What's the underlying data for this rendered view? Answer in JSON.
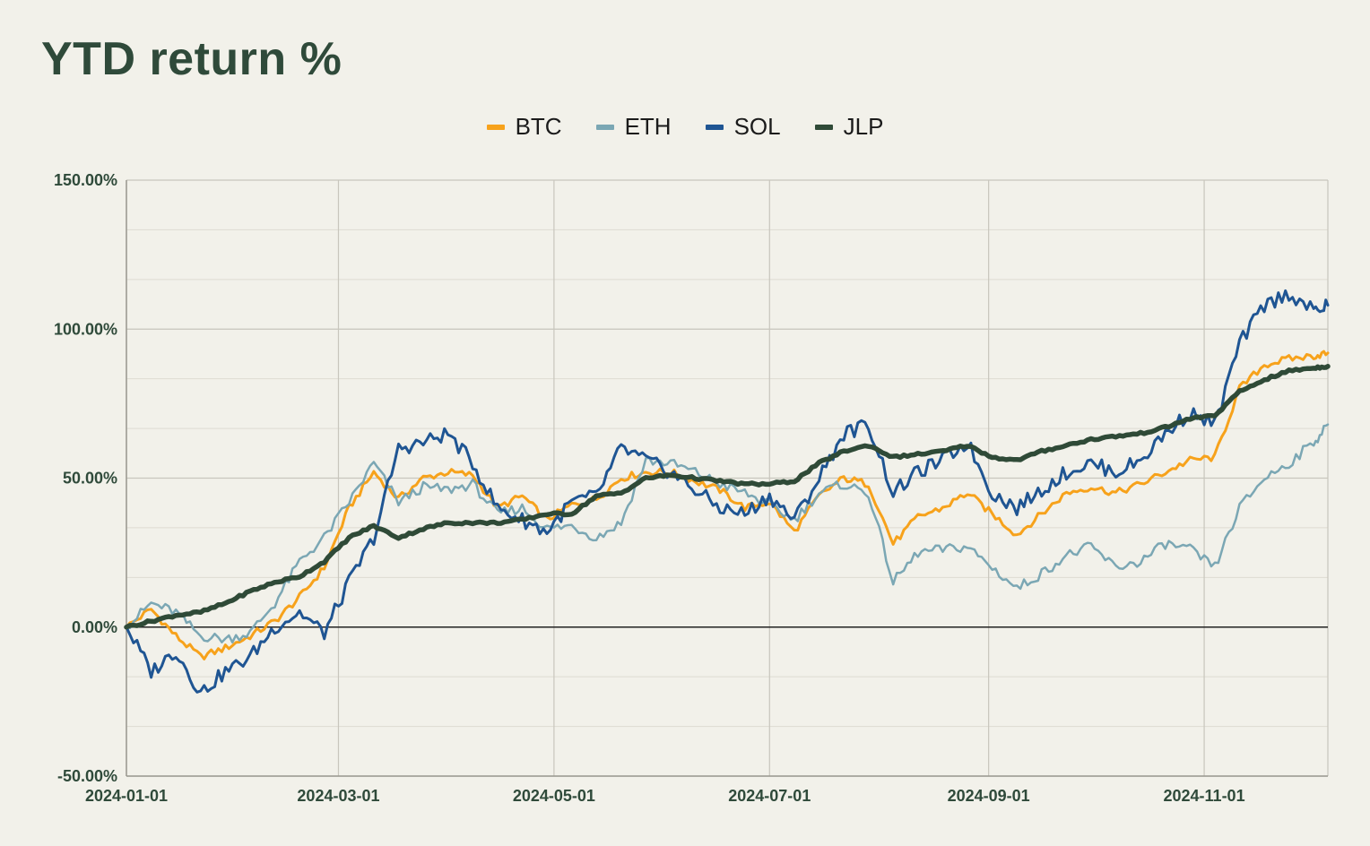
{
  "title": "YTD return %",
  "chart_data": {
    "type": "line",
    "title": "YTD return %",
    "xlabel": "",
    "ylabel": "",
    "x_range": [
      "2024-01-01",
      "2024-12-06"
    ],
    "ylim": [
      -50,
      150
    ],
    "y_ticks": [
      "150.00%",
      "100.00%",
      "50.00%",
      "0.00%",
      "-50.00%"
    ],
    "y_tick_values": [
      150,
      100,
      50,
      0,
      -50
    ],
    "x_ticks": [
      "2024-01-01",
      "2024-03-01",
      "2024-05-01",
      "2024-07-01",
      "2024-09-01",
      "2024-11-01"
    ],
    "grid": true,
    "legend_position": "top-center",
    "series": [
      {
        "name": "BTC",
        "color": "#f7a21b",
        "width": 3,
        "points": [
          [
            "2024-01-01",
            0
          ],
          [
            "2024-01-08",
            6
          ],
          [
            "2024-01-15",
            -3
          ],
          [
            "2024-01-22",
            -10
          ],
          [
            "2024-01-29",
            -7
          ],
          [
            "2024-02-05",
            -3
          ],
          [
            "2024-02-12",
            2
          ],
          [
            "2024-02-19",
            10
          ],
          [
            "2024-02-26",
            20
          ],
          [
            "2024-03-04",
            40
          ],
          [
            "2024-03-11",
            52
          ],
          [
            "2024-03-18",
            43
          ],
          [
            "2024-03-25",
            50
          ],
          [
            "2024-04-01",
            52
          ],
          [
            "2024-04-08",
            51
          ],
          [
            "2024-04-15",
            40
          ],
          [
            "2024-04-22",
            44
          ],
          [
            "2024-04-29",
            36
          ],
          [
            "2024-05-06",
            41
          ],
          [
            "2024-05-13",
            43
          ],
          [
            "2024-05-20",
            50
          ],
          [
            "2024-05-27",
            52
          ],
          [
            "2024-06-03",
            52
          ],
          [
            "2024-06-10",
            49
          ],
          [
            "2024-06-17",
            46
          ],
          [
            "2024-06-24",
            40
          ],
          [
            "2024-07-01",
            42
          ],
          [
            "2024-07-08",
            32
          ],
          [
            "2024-07-15",
            44
          ],
          [
            "2024-07-22",
            50
          ],
          [
            "2024-07-29",
            48
          ],
          [
            "2024-08-05",
            28
          ],
          [
            "2024-08-12",
            37
          ],
          [
            "2024-08-19",
            40
          ],
          [
            "2024-08-26",
            45
          ],
          [
            "2024-09-02",
            38
          ],
          [
            "2024-09-09",
            31
          ],
          [
            "2024-09-16",
            38
          ],
          [
            "2024-09-23",
            45
          ],
          [
            "2024-09-30",
            47
          ],
          [
            "2024-10-07",
            45
          ],
          [
            "2024-10-14",
            48
          ],
          [
            "2024-10-21",
            52
          ],
          [
            "2024-10-28",
            56
          ],
          [
            "2024-11-04",
            57
          ],
          [
            "2024-11-11",
            80
          ],
          [
            "2024-11-18",
            88
          ],
          [
            "2024-11-25",
            90
          ],
          [
            "2024-12-02",
            91
          ],
          [
            "2024-12-06",
            92
          ]
        ]
      },
      {
        "name": "ETH",
        "color": "#7ba7b4",
        "width": 2.5,
        "points": [
          [
            "2024-01-01",
            0
          ],
          [
            "2024-01-08",
            8
          ],
          [
            "2024-01-15",
            5
          ],
          [
            "2024-01-22",
            -3
          ],
          [
            "2024-01-29",
            -4
          ],
          [
            "2024-02-05",
            -2
          ],
          [
            "2024-02-12",
            8
          ],
          [
            "2024-02-19",
            22
          ],
          [
            "2024-02-26",
            30
          ],
          [
            "2024-03-04",
            42
          ],
          [
            "2024-03-11",
            55
          ],
          [
            "2024-03-18",
            42
          ],
          [
            "2024-03-25",
            47
          ],
          [
            "2024-04-01",
            46
          ],
          [
            "2024-04-08",
            48
          ],
          [
            "2024-04-15",
            38
          ],
          [
            "2024-04-22",
            40
          ],
          [
            "2024-04-29",
            33
          ],
          [
            "2024-05-06",
            34
          ],
          [
            "2024-05-13",
            30
          ],
          [
            "2024-05-20",
            35
          ],
          [
            "2024-05-27",
            56
          ],
          [
            "2024-06-03",
            55
          ],
          [
            "2024-06-10",
            52
          ],
          [
            "2024-06-17",
            48
          ],
          [
            "2024-06-24",
            45
          ],
          [
            "2024-07-01",
            41
          ],
          [
            "2024-07-08",
            36
          ],
          [
            "2024-07-15",
            45
          ],
          [
            "2024-07-22",
            48
          ],
          [
            "2024-07-29",
            45
          ],
          [
            "2024-08-05",
            15
          ],
          [
            "2024-08-12",
            25
          ],
          [
            "2024-08-19",
            26
          ],
          [
            "2024-08-26",
            27
          ],
          [
            "2024-09-02",
            20
          ],
          [
            "2024-09-09",
            13
          ],
          [
            "2024-09-16",
            18
          ],
          [
            "2024-09-23",
            24
          ],
          [
            "2024-09-30",
            27
          ],
          [
            "2024-10-07",
            20
          ],
          [
            "2024-10-14",
            22
          ],
          [
            "2024-10-21",
            28
          ],
          [
            "2024-10-28",
            26
          ],
          [
            "2024-11-04",
            20
          ],
          [
            "2024-11-11",
            40
          ],
          [
            "2024-11-18",
            50
          ],
          [
            "2024-11-25",
            55
          ],
          [
            "2024-12-02",
            62
          ],
          [
            "2024-12-06",
            68
          ]
        ]
      },
      {
        "name": "SOL",
        "color": "#1f5593",
        "width": 3,
        "points": [
          [
            "2024-01-01",
            0
          ],
          [
            "2024-01-08",
            -15
          ],
          [
            "2024-01-15",
            -8
          ],
          [
            "2024-01-22",
            -22
          ],
          [
            "2024-01-29",
            -15
          ],
          [
            "2024-02-05",
            -10
          ],
          [
            "2024-02-12",
            0
          ],
          [
            "2024-02-19",
            5
          ],
          [
            "2024-02-26",
            -2
          ],
          [
            "2024-03-04",
            15
          ],
          [
            "2024-03-11",
            30
          ],
          [
            "2024-03-18",
            60
          ],
          [
            "2024-03-25",
            62
          ],
          [
            "2024-04-01",
            65
          ],
          [
            "2024-04-08",
            55
          ],
          [
            "2024-04-15",
            40
          ],
          [
            "2024-04-22",
            36
          ],
          [
            "2024-04-29",
            32
          ],
          [
            "2024-05-06",
            42
          ],
          [
            "2024-05-13",
            44
          ],
          [
            "2024-05-20",
            60
          ],
          [
            "2024-05-27",
            56
          ],
          [
            "2024-06-03",
            52
          ],
          [
            "2024-06-10",
            46
          ],
          [
            "2024-06-17",
            40
          ],
          [
            "2024-06-24",
            38
          ],
          [
            "2024-07-01",
            44
          ],
          [
            "2024-07-08",
            36
          ],
          [
            "2024-07-15",
            50
          ],
          [
            "2024-07-22",
            65
          ],
          [
            "2024-07-29",
            68
          ],
          [
            "2024-08-05",
            45
          ],
          [
            "2024-08-12",
            52
          ],
          [
            "2024-08-19",
            56
          ],
          [
            "2024-08-26",
            62
          ],
          [
            "2024-09-02",
            45
          ],
          [
            "2024-09-09",
            40
          ],
          [
            "2024-09-16",
            46
          ],
          [
            "2024-09-23",
            52
          ],
          [
            "2024-09-30",
            55
          ],
          [
            "2024-10-07",
            52
          ],
          [
            "2024-10-14",
            56
          ],
          [
            "2024-10-21",
            65
          ],
          [
            "2024-10-28",
            72
          ],
          [
            "2024-11-04",
            68
          ],
          [
            "2024-11-11",
            95
          ],
          [
            "2024-11-18",
            108
          ],
          [
            "2024-11-25",
            112
          ],
          [
            "2024-12-02",
            106
          ],
          [
            "2024-12-06",
            108
          ]
        ]
      },
      {
        "name": "JLP",
        "color": "#2f4a37",
        "width": 5.5,
        "points": [
          [
            "2024-01-01",
            0
          ],
          [
            "2024-01-08",
            2
          ],
          [
            "2024-01-15",
            4
          ],
          [
            "2024-01-22",
            5
          ],
          [
            "2024-01-29",
            8
          ],
          [
            "2024-02-05",
            12
          ],
          [
            "2024-02-12",
            15
          ],
          [
            "2024-02-19",
            17
          ],
          [
            "2024-02-26",
            22
          ],
          [
            "2024-03-04",
            30
          ],
          [
            "2024-03-11",
            34
          ],
          [
            "2024-03-18",
            30
          ],
          [
            "2024-03-25",
            33
          ],
          [
            "2024-04-01",
            35
          ],
          [
            "2024-04-08",
            35
          ],
          [
            "2024-04-15",
            35
          ],
          [
            "2024-04-22",
            36
          ],
          [
            "2024-04-29",
            38
          ],
          [
            "2024-05-06",
            38
          ],
          [
            "2024-05-13",
            44
          ],
          [
            "2024-05-20",
            45
          ],
          [
            "2024-05-27",
            50
          ],
          [
            "2024-06-03",
            51
          ],
          [
            "2024-06-10",
            50
          ],
          [
            "2024-06-17",
            49
          ],
          [
            "2024-06-24",
            48
          ],
          [
            "2024-07-01",
            48
          ],
          [
            "2024-07-08",
            49
          ],
          [
            "2024-07-15",
            55
          ],
          [
            "2024-07-22",
            59
          ],
          [
            "2024-07-29",
            61
          ],
          [
            "2024-08-05",
            57
          ],
          [
            "2024-08-12",
            58
          ],
          [
            "2024-08-19",
            59
          ],
          [
            "2024-08-26",
            61
          ],
          [
            "2024-09-02",
            57
          ],
          [
            "2024-09-09",
            56
          ],
          [
            "2024-09-16",
            59
          ],
          [
            "2024-09-23",
            61
          ],
          [
            "2024-09-30",
            63
          ],
          [
            "2024-10-07",
            64
          ],
          [
            "2024-10-14",
            65
          ],
          [
            "2024-10-21",
            67
          ],
          [
            "2024-10-28",
            70
          ],
          [
            "2024-11-04",
            71
          ],
          [
            "2024-11-11",
            79
          ],
          [
            "2024-11-18",
            83
          ],
          [
            "2024-11-25",
            86
          ],
          [
            "2024-12-02",
            87
          ],
          [
            "2024-12-06",
            87.5
          ]
        ]
      }
    ]
  }
}
